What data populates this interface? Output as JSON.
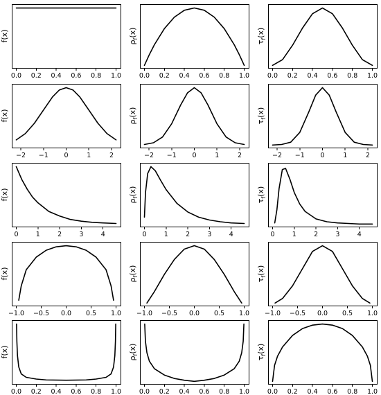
{
  "chart_data": [
    {
      "row": 0,
      "col": 0,
      "type": "line",
      "ylabel": "f(x)",
      "xlim": [
        0,
        1
      ],
      "xticks": [
        0.0,
        0.2,
        0.4,
        0.6,
        0.8,
        1.0
      ],
      "xtick_labels": [
        "0.0",
        "0.2",
        "0.4",
        "0.6",
        "0.8",
        "1.0"
      ],
      "series": [
        {
          "x": [
            0,
            1
          ],
          "y": [
            1,
            1
          ]
        }
      ]
    },
    {
      "row": 0,
      "col": 1,
      "type": "line",
      "ylabel": "ρf(x)",
      "xlim": [
        0,
        1
      ],
      "xticks": [
        0.0,
        0.2,
        0.4,
        0.6,
        0.8,
        1.0
      ],
      "xtick_labels": [
        "0.0",
        "0.2",
        "0.4",
        "0.6",
        "0.8",
        "1.0"
      ],
      "series": [
        {
          "x": [
            0,
            0.05,
            0.1,
            0.2,
            0.3,
            0.4,
            0.5,
            0.6,
            0.7,
            0.8,
            0.9,
            0.95,
            1.0
          ],
          "y": [
            0,
            0.19,
            0.36,
            0.64,
            0.84,
            0.96,
            1,
            0.96,
            0.84,
            0.64,
            0.36,
            0.19,
            0
          ]
        }
      ]
    },
    {
      "row": 0,
      "col": 2,
      "type": "line",
      "ylabel": "τf(x)",
      "xlim": [
        0,
        1
      ],
      "xticks": [
        0.0,
        0.2,
        0.4,
        0.6,
        0.8,
        1.0
      ],
      "xtick_labels": [
        "0.0",
        "0.2",
        "0.4",
        "0.6",
        "0.8",
        "1.0"
      ],
      "series": [
        {
          "x": [
            0,
            0.1,
            0.2,
            0.3,
            0.4,
            0.5,
            0.6,
            0.7,
            0.8,
            0.9,
            1.0
          ],
          "y": [
            0,
            0.1,
            0.35,
            0.65,
            0.9,
            1,
            0.9,
            0.65,
            0.35,
            0.1,
            0
          ]
        }
      ]
    },
    {
      "row": 1,
      "col": 0,
      "type": "line",
      "ylabel": "f(x)",
      "xlim": [
        -2.2,
        2.2
      ],
      "xticks": [
        -2,
        -1,
        0,
        1,
        2
      ],
      "xtick_labels": [
        "−2",
        "−1",
        "0",
        "1",
        "2"
      ],
      "series": [
        {
          "x": [
            -2.2,
            -1.8,
            -1.4,
            -1.0,
            -0.6,
            -0.3,
            0,
            0.3,
            0.6,
            1.0,
            1.4,
            1.8,
            2.2
          ],
          "y": [
            0.09,
            0.2,
            0.38,
            0.61,
            0.84,
            0.96,
            1,
            0.96,
            0.84,
            0.61,
            0.38,
            0.2,
            0.09
          ]
        }
      ]
    },
    {
      "row": 1,
      "col": 1,
      "type": "line",
      "ylabel": "ρf(x)",
      "xlim": [
        -2.2,
        2.2
      ],
      "xticks": [
        -2,
        -1,
        0,
        1,
        2
      ],
      "xtick_labels": [
        "−2",
        "−1",
        "0",
        "1",
        "2"
      ],
      "series": [
        {
          "x": [
            -2.2,
            -1.8,
            -1.4,
            -1.0,
            -0.6,
            -0.3,
            0,
            0.3,
            0.6,
            1.0,
            1.4,
            1.8,
            2.2
          ],
          "y": [
            0.01,
            0.04,
            0.14,
            0.37,
            0.7,
            0.91,
            1,
            0.91,
            0.7,
            0.37,
            0.14,
            0.04,
            0.01
          ]
        }
      ]
    },
    {
      "row": 1,
      "col": 2,
      "type": "line",
      "ylabel": "τf(x)",
      "xlim": [
        -2.2,
        2.2
      ],
      "xticks": [
        -2,
        -1,
        0,
        1,
        2
      ],
      "xtick_labels": [
        "−2",
        "−1",
        "0",
        "1",
        "2"
      ],
      "series": [
        {
          "x": [
            -2.2,
            -1.8,
            -1.4,
            -1.0,
            -0.6,
            -0.3,
            0,
            0.3,
            0.6,
            1.0,
            1.4,
            1.8,
            2.2
          ],
          "y": [
            0.0,
            0.01,
            0.05,
            0.22,
            0.58,
            0.87,
            1,
            0.87,
            0.58,
            0.22,
            0.05,
            0.01,
            0.0
          ]
        }
      ]
    },
    {
      "row": 2,
      "col": 0,
      "type": "line",
      "ylabel": "f(x)",
      "xlim": [
        0,
        4.6
      ],
      "xticks": [
        0,
        1,
        2,
        3,
        4
      ],
      "xtick_labels": [
        "0",
        "1",
        "2",
        "3",
        "4"
      ],
      "series": [
        {
          "x": [
            0,
            0.25,
            0.5,
            0.75,
            1.0,
            1.5,
            2.0,
            2.5,
            3.0,
            3.5,
            4.0,
            4.6
          ],
          "y": [
            1,
            0.78,
            0.61,
            0.47,
            0.37,
            0.22,
            0.14,
            0.08,
            0.05,
            0.03,
            0.02,
            0.01
          ]
        }
      ]
    },
    {
      "row": 2,
      "col": 1,
      "type": "line",
      "ylabel": "ρf(x)",
      "xlim": [
        0,
        4.6
      ],
      "xticks": [
        0,
        1,
        2,
        3,
        4
      ],
      "xtick_labels": [
        "0",
        "1",
        "2",
        "3",
        "4"
      ],
      "series": [
        {
          "x": [
            0,
            0.05,
            0.15,
            0.3,
            0.5,
            0.75,
            1.0,
            1.5,
            2.0,
            2.5,
            3.0,
            3.5,
            4.0,
            4.6
          ],
          "y": [
            0.12,
            0.55,
            0.88,
            1,
            0.93,
            0.76,
            0.6,
            0.36,
            0.21,
            0.12,
            0.07,
            0.04,
            0.02,
            0.01
          ]
        }
      ]
    },
    {
      "row": 2,
      "col": 2,
      "type": "line",
      "ylabel": "τf(x)",
      "xlim": [
        0,
        4.6
      ],
      "xticks": [
        0,
        1,
        2,
        3,
        4
      ],
      "xtick_labels": [
        "0",
        "1",
        "2",
        "3",
        "4"
      ],
      "series": [
        {
          "x": [
            0.1,
            0.2,
            0.3,
            0.45,
            0.6,
            0.8,
            1.0,
            1.25,
            1.5,
            2.0,
            2.5,
            3.0,
            3.5,
            4.0,
            4.6
          ],
          "y": [
            0.02,
            0.25,
            0.62,
            0.95,
            0.97,
            0.78,
            0.55,
            0.35,
            0.22,
            0.09,
            0.04,
            0.02,
            0.01,
            0.0,
            0.0
          ]
        }
      ]
    },
    {
      "row": 3,
      "col": 0,
      "type": "line",
      "ylabel": "f(x)",
      "xlim": [
        -1,
        1
      ],
      "xticks": [
        -1.0,
        -0.5,
        0.0,
        0.5,
        1.0
      ],
      "xtick_labels": [
        "−1.0",
        "−0.5",
        "0.0",
        "0.5",
        "1.0"
      ],
      "series": [
        {
          "x": [
            -0.95,
            -0.9,
            -0.8,
            -0.6,
            -0.4,
            -0.2,
            0,
            0.2,
            0.4,
            0.6,
            0.8,
            0.9,
            0.95
          ],
          "y": [
            0.05,
            0.3,
            0.58,
            0.8,
            0.92,
            0.98,
            1,
            0.98,
            0.92,
            0.8,
            0.58,
            0.3,
            0.05
          ]
        }
      ]
    },
    {
      "row": 3,
      "col": 1,
      "type": "line",
      "ylabel": "ρf(x)",
      "xlim": [
        -1,
        1
      ],
      "xticks": [
        -1.0,
        -0.5,
        0.0,
        0.5,
        1.0
      ],
      "xtick_labels": [
        "−1.0",
        "−0.5",
        "0.0",
        "0.5",
        "1.0"
      ],
      "series": [
        {
          "x": [
            -0.95,
            -0.8,
            -0.6,
            -0.4,
            -0.2,
            0,
            0.2,
            0.4,
            0.6,
            0.8,
            0.95
          ],
          "y": [
            0.0,
            0.2,
            0.5,
            0.76,
            0.94,
            1,
            0.94,
            0.76,
            0.5,
            0.2,
            0.0
          ]
        }
      ]
    },
    {
      "row": 3,
      "col": 2,
      "type": "line",
      "ylabel": "τf(x)",
      "xlim": [
        -1,
        1
      ],
      "xticks": [
        -1.0,
        -0.5,
        0.0,
        0.5,
        1.0
      ],
      "xtick_labels": [
        "−1.0",
        "−0.5",
        "0.0",
        "0.5",
        "1.0"
      ],
      "series": [
        {
          "x": [
            -0.95,
            -0.8,
            -0.6,
            -0.4,
            -0.2,
            0,
            0.2,
            0.4,
            0.6,
            0.8,
            0.95
          ],
          "y": [
            0.0,
            0.08,
            0.3,
            0.6,
            0.9,
            1,
            0.9,
            0.6,
            0.3,
            0.08,
            0.0
          ]
        }
      ]
    },
    {
      "row": 4,
      "col": 0,
      "type": "line",
      "ylabel": "f(x)",
      "xlim": [
        0,
        1
      ],
      "xticks": [
        0.0,
        0.2,
        0.4,
        0.6,
        0.8,
        1.0
      ],
      "xtick_labels": [
        "0.0",
        "0.2",
        "0.4",
        "0.6",
        "0.8",
        "1.0"
      ],
      "series": [
        {
          "x": [
            0.003,
            0.006,
            0.012,
            0.025,
            0.05,
            0.1,
            0.2,
            0.3,
            0.5,
            0.7,
            0.8,
            0.9,
            0.95,
            0.975,
            0.988,
            0.994,
            0.997
          ],
          "y": [
            1,
            0.7,
            0.45,
            0.25,
            0.13,
            0.07,
            0.04,
            0.025,
            0.02,
            0.025,
            0.04,
            0.07,
            0.13,
            0.25,
            0.45,
            0.7,
            1
          ]
        }
      ]
    },
    {
      "row": 4,
      "col": 1,
      "type": "line",
      "ylabel": "ρf(x)",
      "xlim": [
        0,
        1
      ],
      "xticks": [
        0.0,
        0.2,
        0.4,
        0.6,
        0.8,
        1.0
      ],
      "xtick_labels": [
        "0.0",
        "0.2",
        "0.4",
        "0.6",
        "0.8",
        "1.0"
      ],
      "series": [
        {
          "x": [
            0.003,
            0.01,
            0.025,
            0.05,
            0.1,
            0.2,
            0.3,
            0.4,
            0.5,
            0.6,
            0.7,
            0.8,
            0.9,
            0.95,
            0.975,
            0.99,
            0.997
          ],
          "y": [
            1,
            0.7,
            0.5,
            0.35,
            0.22,
            0.11,
            0.05,
            0.02,
            0.0,
            0.02,
            0.05,
            0.11,
            0.22,
            0.35,
            0.5,
            0.7,
            1
          ]
        }
      ]
    },
    {
      "row": 4,
      "col": 2,
      "type": "line",
      "ylabel": "τf(x)",
      "xlim": [
        0,
        1
      ],
      "xticks": [
        0.0,
        0.2,
        0.4,
        0.6,
        0.8,
        1.0
      ],
      "xtick_labels": [
        "0.0",
        "0.2",
        "0.4",
        "0.6",
        "0.8",
        "1.0"
      ],
      "series": [
        {
          "x": [
            0,
            0.02,
            0.05,
            0.1,
            0.2,
            0.3,
            0.4,
            0.5,
            0.6,
            0.7,
            0.8,
            0.9,
            0.95,
            0.98,
            1.0
          ],
          "y": [
            0,
            0.28,
            0.44,
            0.6,
            0.8,
            0.92,
            0.98,
            1,
            0.98,
            0.92,
            0.8,
            0.6,
            0.44,
            0.28,
            0
          ]
        }
      ]
    }
  ]
}
